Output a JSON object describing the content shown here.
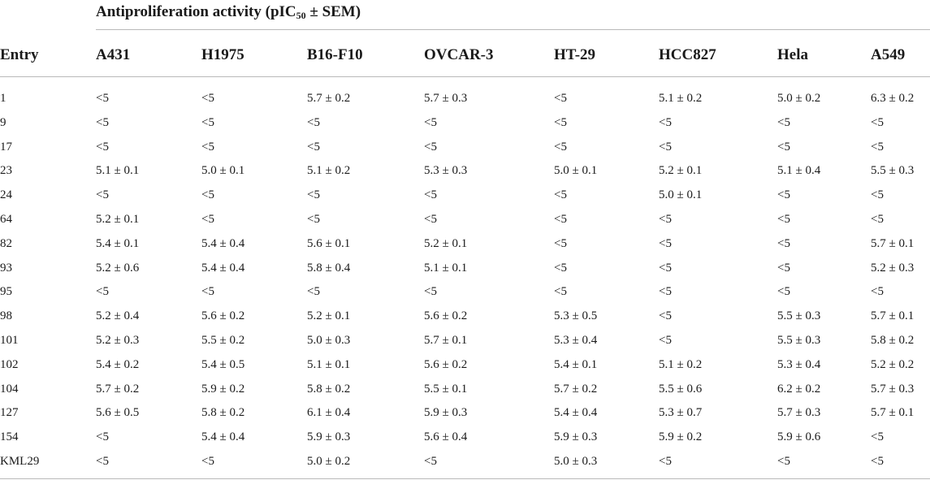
{
  "table": {
    "title_prefix": "Antiproliferation activity (pIC",
    "title_sub": "50",
    "title_suffix": " ± SEM)",
    "columns": [
      "Entry",
      "A431",
      "H1975",
      "B16-F10",
      "OVCAR-3",
      "HT-29",
      "HCC827",
      "Hela",
      "A549"
    ],
    "rows": [
      [
        "1",
        "<5",
        "<5",
        "5.7 ± 0.2",
        "5.7 ± 0.3",
        "<5",
        "5.1 ± 0.2",
        "5.0 ± 0.2",
        "6.3 ± 0.2"
      ],
      [
        "9",
        "<5",
        "<5",
        "<5",
        "<5",
        "<5",
        "<5",
        "<5",
        "<5"
      ],
      [
        "17",
        "<5",
        "<5",
        "<5",
        "<5",
        "<5",
        "<5",
        "<5",
        "<5"
      ],
      [
        "23",
        "5.1 ± 0.1",
        "5.0 ± 0.1",
        "5.1 ± 0.2",
        "5.3 ± 0.3",
        "5.0 ± 0.1",
        "5.2 ± 0.1",
        "5.1 ± 0.4",
        "5.5 ± 0.3"
      ],
      [
        "24",
        "<5",
        "<5",
        "<5",
        "<5",
        "<5",
        "5.0 ± 0.1",
        "<5",
        "<5"
      ],
      [
        "64",
        "5.2 ± 0.1",
        "<5",
        "<5",
        "<5",
        "<5",
        "<5",
        "<5",
        "<5"
      ],
      [
        "82",
        "5.4 ± 0.1",
        "5.4 ± 0.4",
        "5.6 ± 0.1",
        "5.2 ± 0.1",
        "<5",
        "<5",
        "<5",
        "5.7 ± 0.1"
      ],
      [
        "93",
        "5.2 ± 0.6",
        "5.4 ± 0.4",
        "5.8 ± 0.4",
        "5.1 ± 0.1",
        "<5",
        "<5",
        "<5",
        "5.2 ± 0.3"
      ],
      [
        "95",
        "<5",
        "<5",
        "<5",
        "<5",
        "<5",
        "<5",
        "<5",
        "<5"
      ],
      [
        "98",
        "5.2 ± 0.4",
        "5.6 ± 0.2",
        "5.2 ± 0.1",
        "5.6 ± 0.2",
        "5.3 ± 0.5",
        "<5",
        "5.5 ± 0.3",
        "5.7 ± 0.1"
      ],
      [
        "101",
        "5.2 ± 0.3",
        "5.5 ± 0.2",
        "5.0 ± 0.3",
        "5.7 ± 0.1",
        "5.3 ± 0.4",
        "<5",
        "5.5 ± 0.3",
        "5.8 ± 0.2"
      ],
      [
        "102",
        "5.4 ± 0.2",
        "5.4 ± 0.5",
        "5.1 ± 0.1",
        "5.6 ± 0.2",
        "5.4 ± 0.1",
        "5.1 ± 0.2",
        "5.3 ± 0.4",
        "5.2 ± 0.2"
      ],
      [
        "104",
        "5.7 ± 0.2",
        "5.9 ± 0.2",
        "5.8 ± 0.2",
        "5.5 ± 0.1",
        "5.7 ± 0.2",
        "5.5 ± 0.6",
        "6.2 ± 0.2",
        "5.7 ± 0.3"
      ],
      [
        "127",
        "5.6 ± 0.5",
        "5.8 ± 0.2",
        "6.1 ± 0.4",
        "5.9 ± 0.3",
        "5.4 ± 0.4",
        "5.3 ± 0.7",
        "5.7 ± 0.3",
        "5.7 ± 0.1"
      ],
      [
        "154",
        "<5",
        "5.4 ± 0.4",
        "5.9 ± 0.3",
        "5.6 ± 0.4",
        "5.9 ± 0.3",
        "5.9 ± 0.2",
        "5.9 ± 0.6",
        "<5"
      ],
      [
        "KML29",
        "<5",
        "<5",
        "5.0 ± 0.2",
        "<5",
        "5.0 ± 0.3",
        "<5",
        "<5",
        "<5"
      ]
    ]
  }
}
